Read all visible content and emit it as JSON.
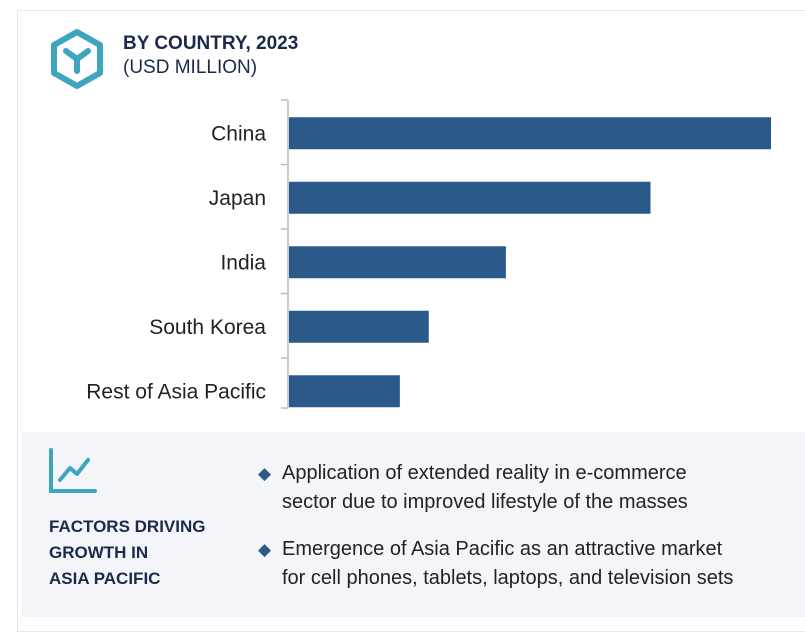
{
  "header": {
    "title": "BY COUNTRY, 2023",
    "subtitle": "(USD MILLION)",
    "icon": "hexagon-y-icon"
  },
  "colors": {
    "bar": "#2b5a8a",
    "accent": "#3ea5c0",
    "title": "#1b2a4a",
    "panel_bg": "#f3f5f9"
  },
  "chart_data": {
    "type": "bar",
    "orientation": "horizontal",
    "title": "BY COUNTRY, 2023",
    "ylabel": "(USD MILLION)",
    "categories": [
      "China",
      "Japan",
      "India",
      "South Korea",
      "Rest of Asia Pacific"
    ],
    "values": [
      100,
      75,
      45,
      29,
      23
    ],
    "grid": false
  },
  "factors": {
    "icon": "line-chart-icon",
    "heading": [
      "FACTORS DRIVING",
      "GROWTH IN",
      "ASIA PACIFIC"
    ],
    "bullets": [
      [
        "Application of extended reality in e-commerce",
        "sector due to improved lifestyle of the masses"
      ],
      [
        "Emergence of Asia Pacific as an attractive market",
        "for cell phones, tablets, laptops, and television sets"
      ]
    ]
  }
}
